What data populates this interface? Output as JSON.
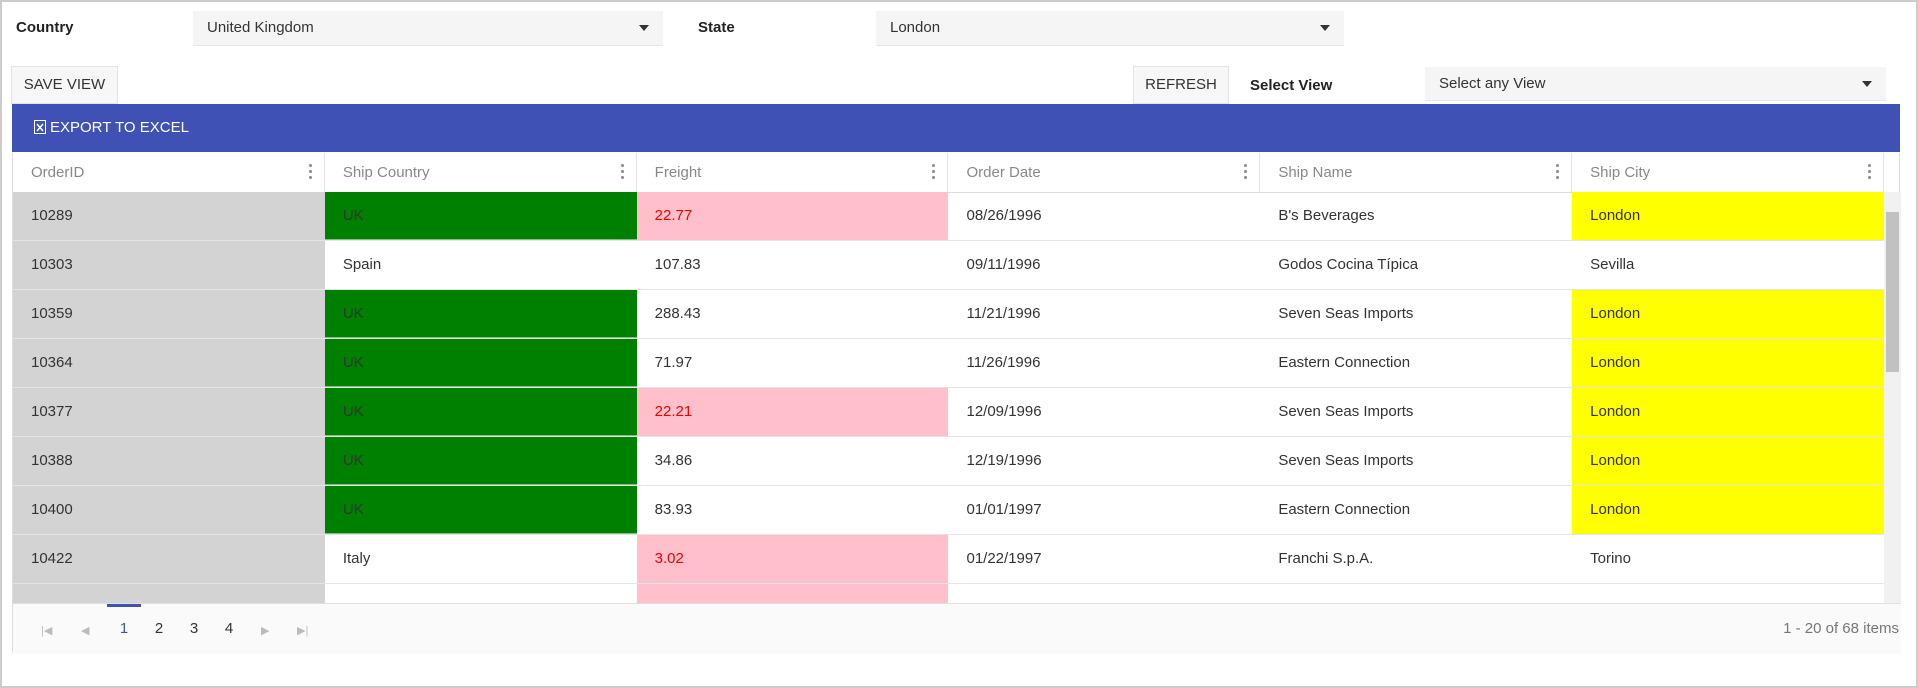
{
  "filters": {
    "country_label": "Country",
    "country_value": "United Kingdom",
    "state_label": "State",
    "state_value": "London"
  },
  "toolbar": {
    "save_view": "SAVE VIEW",
    "refresh": "REFRESH",
    "select_view_label": "Select View",
    "select_view_placeholder": "Select any View",
    "export": "EXPORT TO EXCEL"
  },
  "table": {
    "columns": [
      "OrderID",
      "Ship Country",
      "Freight",
      "Order Date",
      "Ship Name",
      "Ship City"
    ],
    "rows": [
      [
        "10289",
        "UK",
        "22.77",
        "08/26/1996",
        "B's Beverages",
        "London"
      ],
      [
        "10303",
        "Spain",
        "107.83",
        "09/11/1996",
        "Godos Cocina Típica",
        "Sevilla"
      ],
      [
        "10359",
        "UK",
        "288.43",
        "11/21/1996",
        "Seven Seas Imports",
        "London"
      ],
      [
        "10364",
        "UK",
        "71.97",
        "11/26/1996",
        "Eastern Connection",
        "London"
      ],
      [
        "10377",
        "UK",
        "22.21",
        "12/09/1996",
        "Seven Seas Imports",
        "London"
      ],
      [
        "10388",
        "UK",
        "34.86",
        "12/19/1996",
        "Seven Seas Imports",
        "London"
      ],
      [
        "10400",
        "UK",
        "83.93",
        "01/01/1997",
        "Eastern Connection",
        "London"
      ],
      [
        "10422",
        "Italy",
        "3.02",
        "01/22/1997",
        "Franchi S.p.A.",
        "Torino"
      ]
    ]
  },
  "pager": {
    "pages": [
      "1",
      "2",
      "3",
      "4"
    ],
    "summary": "1 - 20 of 68 items"
  }
}
